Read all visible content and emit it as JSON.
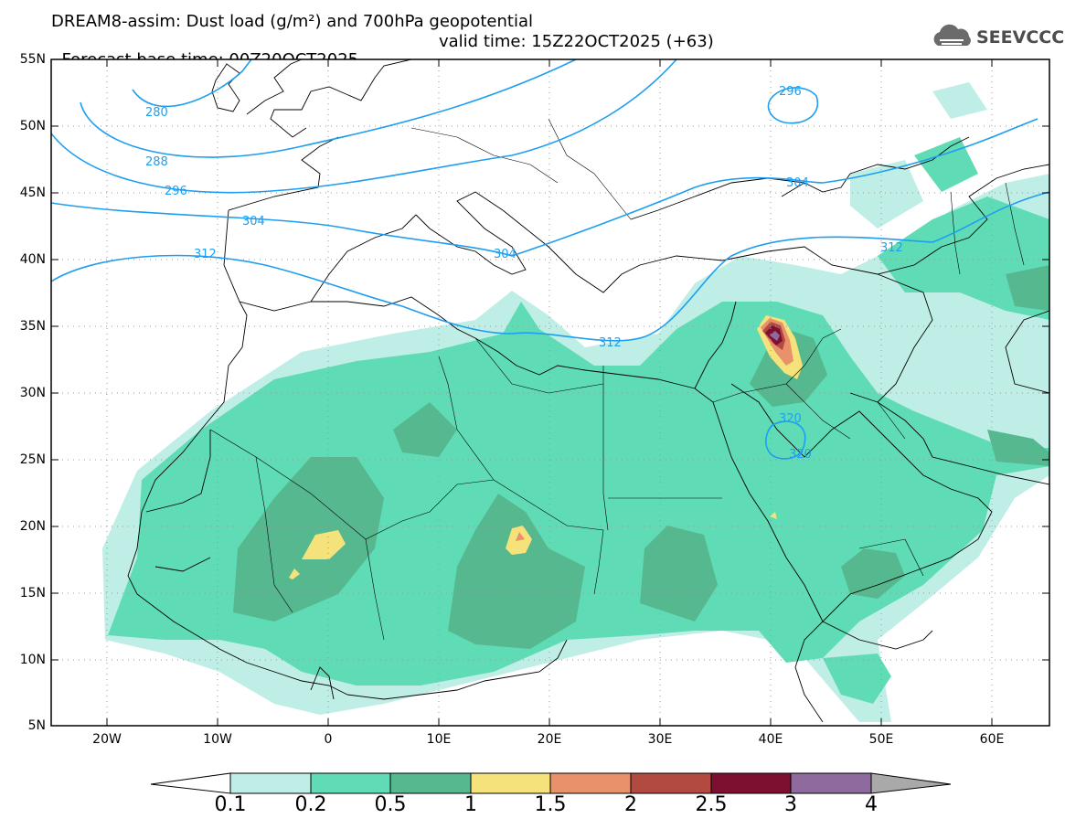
{
  "header": {
    "title_line1": "DREAM8-assim: Dust load (g/m²) and 700hPa geopotential",
    "title_line2_left": "Forecast base time: 00Z20OCT2025",
    "title_line2_right": "valid time: 15Z22OCT2025 (+63)",
    "logo_text": "SEEVCCC",
    "logo_icon": "cloud-logo-icon"
  },
  "map": {
    "lat_labels": [
      "55N",
      "50N",
      "45N",
      "40N",
      "35N",
      "30N",
      "25N",
      "20N",
      "15N",
      "10N",
      "5N"
    ],
    "lon_labels": [
      "20W",
      "10W",
      "0",
      "10E",
      "20E",
      "30E",
      "40E",
      "50E",
      "60E"
    ],
    "contour_labels": [
      "280",
      "288",
      "296",
      "304",
      "304",
      "312",
      "312",
      "312",
      "304",
      "296",
      "320",
      "320"
    ]
  },
  "colorbar": {
    "ticks": [
      "0.1",
      "0.2",
      "0.5",
      "1",
      "1.5",
      "2",
      "2.5",
      "3",
      "4"
    ],
    "colors": [
      "#ffffff",
      "#bfeee6",
      "#5fdcb5",
      "#56b88f",
      "#f5e27a",
      "#e8916a",
      "#b24a42",
      "#7d1030",
      "#8e6a9e",
      "#a9a9a9"
    ]
  }
}
